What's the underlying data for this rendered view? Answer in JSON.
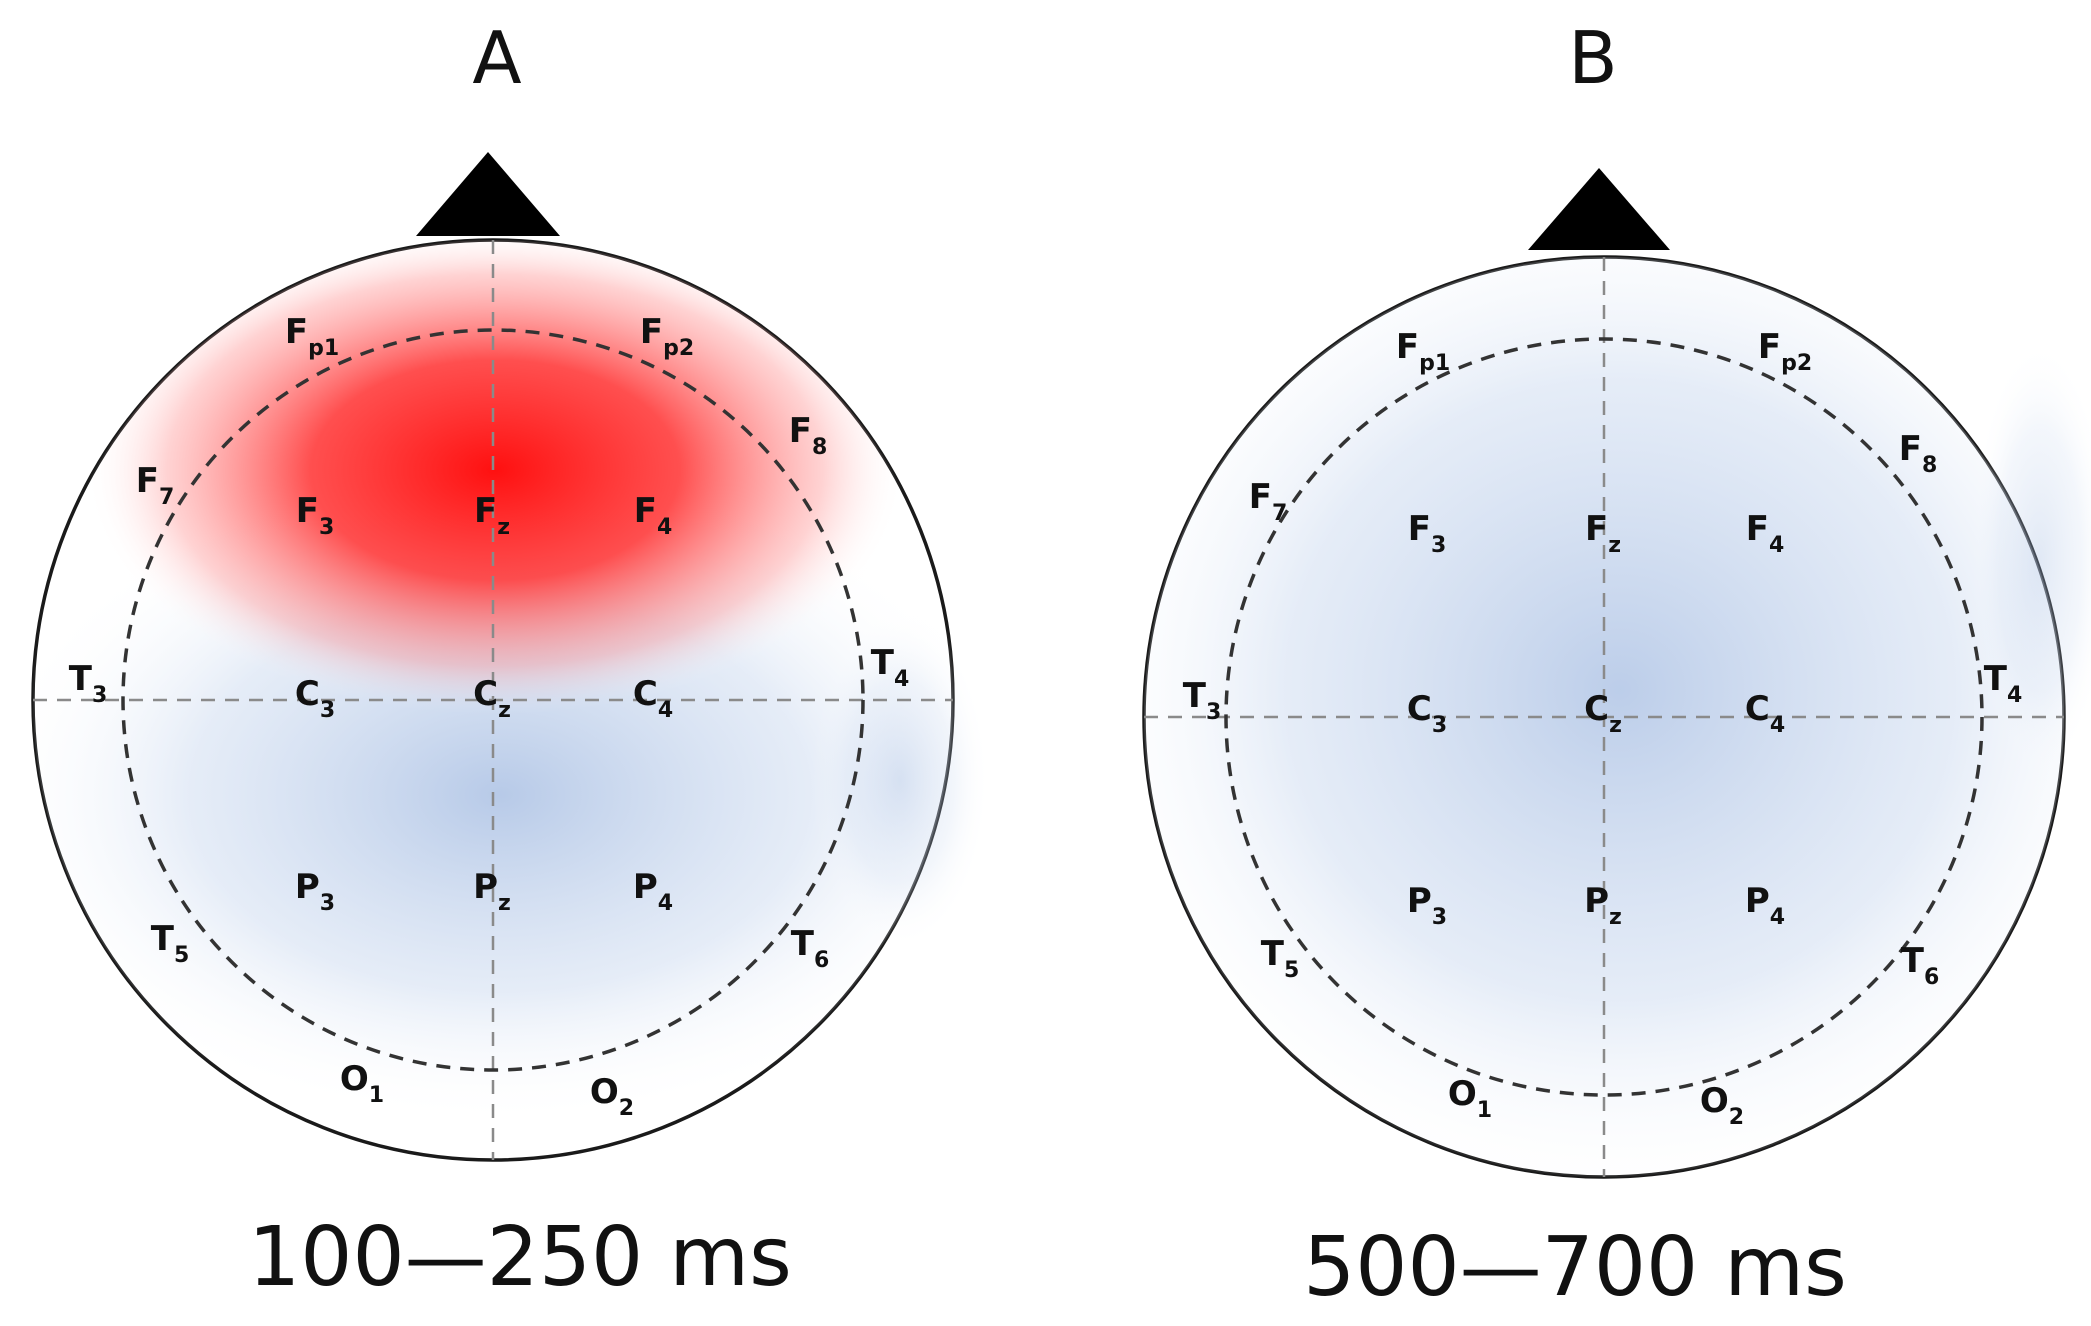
{
  "panels": [
    {
      "id": "A",
      "title": "A",
      "caption": "100—250 ms",
      "activations": [
        {
          "kind": "positive",
          "color": "#ff1010",
          "center_electrode": "Fz",
          "extent": "frontal"
        },
        {
          "kind": "negative",
          "color": "#9fb8e0",
          "center_electrode": "Pz",
          "extent": "centro-parietal"
        }
      ],
      "electrodes": [
        {
          "id": "Fp1",
          "letter": "F",
          "sub": "p1"
        },
        {
          "id": "Fp2",
          "letter": "F",
          "sub": "p2"
        },
        {
          "id": "F7",
          "letter": "F",
          "sub": "7"
        },
        {
          "id": "F8",
          "letter": "F",
          "sub": "8"
        },
        {
          "id": "F3",
          "letter": "F",
          "sub": "3"
        },
        {
          "id": "Fz",
          "letter": "F",
          "sub": "z"
        },
        {
          "id": "F4",
          "letter": "F",
          "sub": "4"
        },
        {
          "id": "T3",
          "letter": "T",
          "sub": "3"
        },
        {
          "id": "C3",
          "letter": "C",
          "sub": "3"
        },
        {
          "id": "Cz",
          "letter": "C",
          "sub": "z"
        },
        {
          "id": "C4",
          "letter": "C",
          "sub": "4"
        },
        {
          "id": "T4",
          "letter": "T",
          "sub": "4"
        },
        {
          "id": "P3",
          "letter": "P",
          "sub": "3"
        },
        {
          "id": "Pz",
          "letter": "P",
          "sub": "z"
        },
        {
          "id": "P4",
          "letter": "P",
          "sub": "4"
        },
        {
          "id": "T5",
          "letter": "T",
          "sub": "5"
        },
        {
          "id": "T6",
          "letter": "T",
          "sub": "6"
        },
        {
          "id": "O1",
          "letter": "O",
          "sub": "1"
        },
        {
          "id": "O2",
          "letter": "O",
          "sub": "2"
        }
      ]
    },
    {
      "id": "B",
      "title": "B",
      "caption": "500—700 ms",
      "activations": [
        {
          "kind": "negative",
          "color": "#9fb8e0",
          "center_electrode": "Cz",
          "extent": "diffuse"
        }
      ],
      "electrodes": [
        {
          "id": "Fp1",
          "letter": "F",
          "sub": "p1"
        },
        {
          "id": "Fp2",
          "letter": "F",
          "sub": "p2"
        },
        {
          "id": "F7",
          "letter": "F",
          "sub": "7"
        },
        {
          "id": "F8",
          "letter": "F",
          "sub": "8"
        },
        {
          "id": "F3",
          "letter": "F",
          "sub": "3"
        },
        {
          "id": "Fz",
          "letter": "F",
          "sub": "z"
        },
        {
          "id": "F4",
          "letter": "F",
          "sub": "4"
        },
        {
          "id": "T3",
          "letter": "T",
          "sub": "3"
        },
        {
          "id": "C3",
          "letter": "C",
          "sub": "3"
        },
        {
          "id": "Cz",
          "letter": "C",
          "sub": "z"
        },
        {
          "id": "C4",
          "letter": "C",
          "sub": "4"
        },
        {
          "id": "T4",
          "letter": "T",
          "sub": "4"
        },
        {
          "id": "P3",
          "letter": "P",
          "sub": "3"
        },
        {
          "id": "Pz",
          "letter": "P",
          "sub": "z"
        },
        {
          "id": "P4",
          "letter": "P",
          "sub": "4"
        },
        {
          "id": "T5",
          "letter": "T",
          "sub": "5"
        },
        {
          "id": "T6",
          "letter": "T",
          "sub": "6"
        },
        {
          "id": "O1",
          "letter": "O",
          "sub": "1"
        },
        {
          "id": "O2",
          "letter": "O",
          "sub": "2"
        }
      ]
    }
  ]
}
